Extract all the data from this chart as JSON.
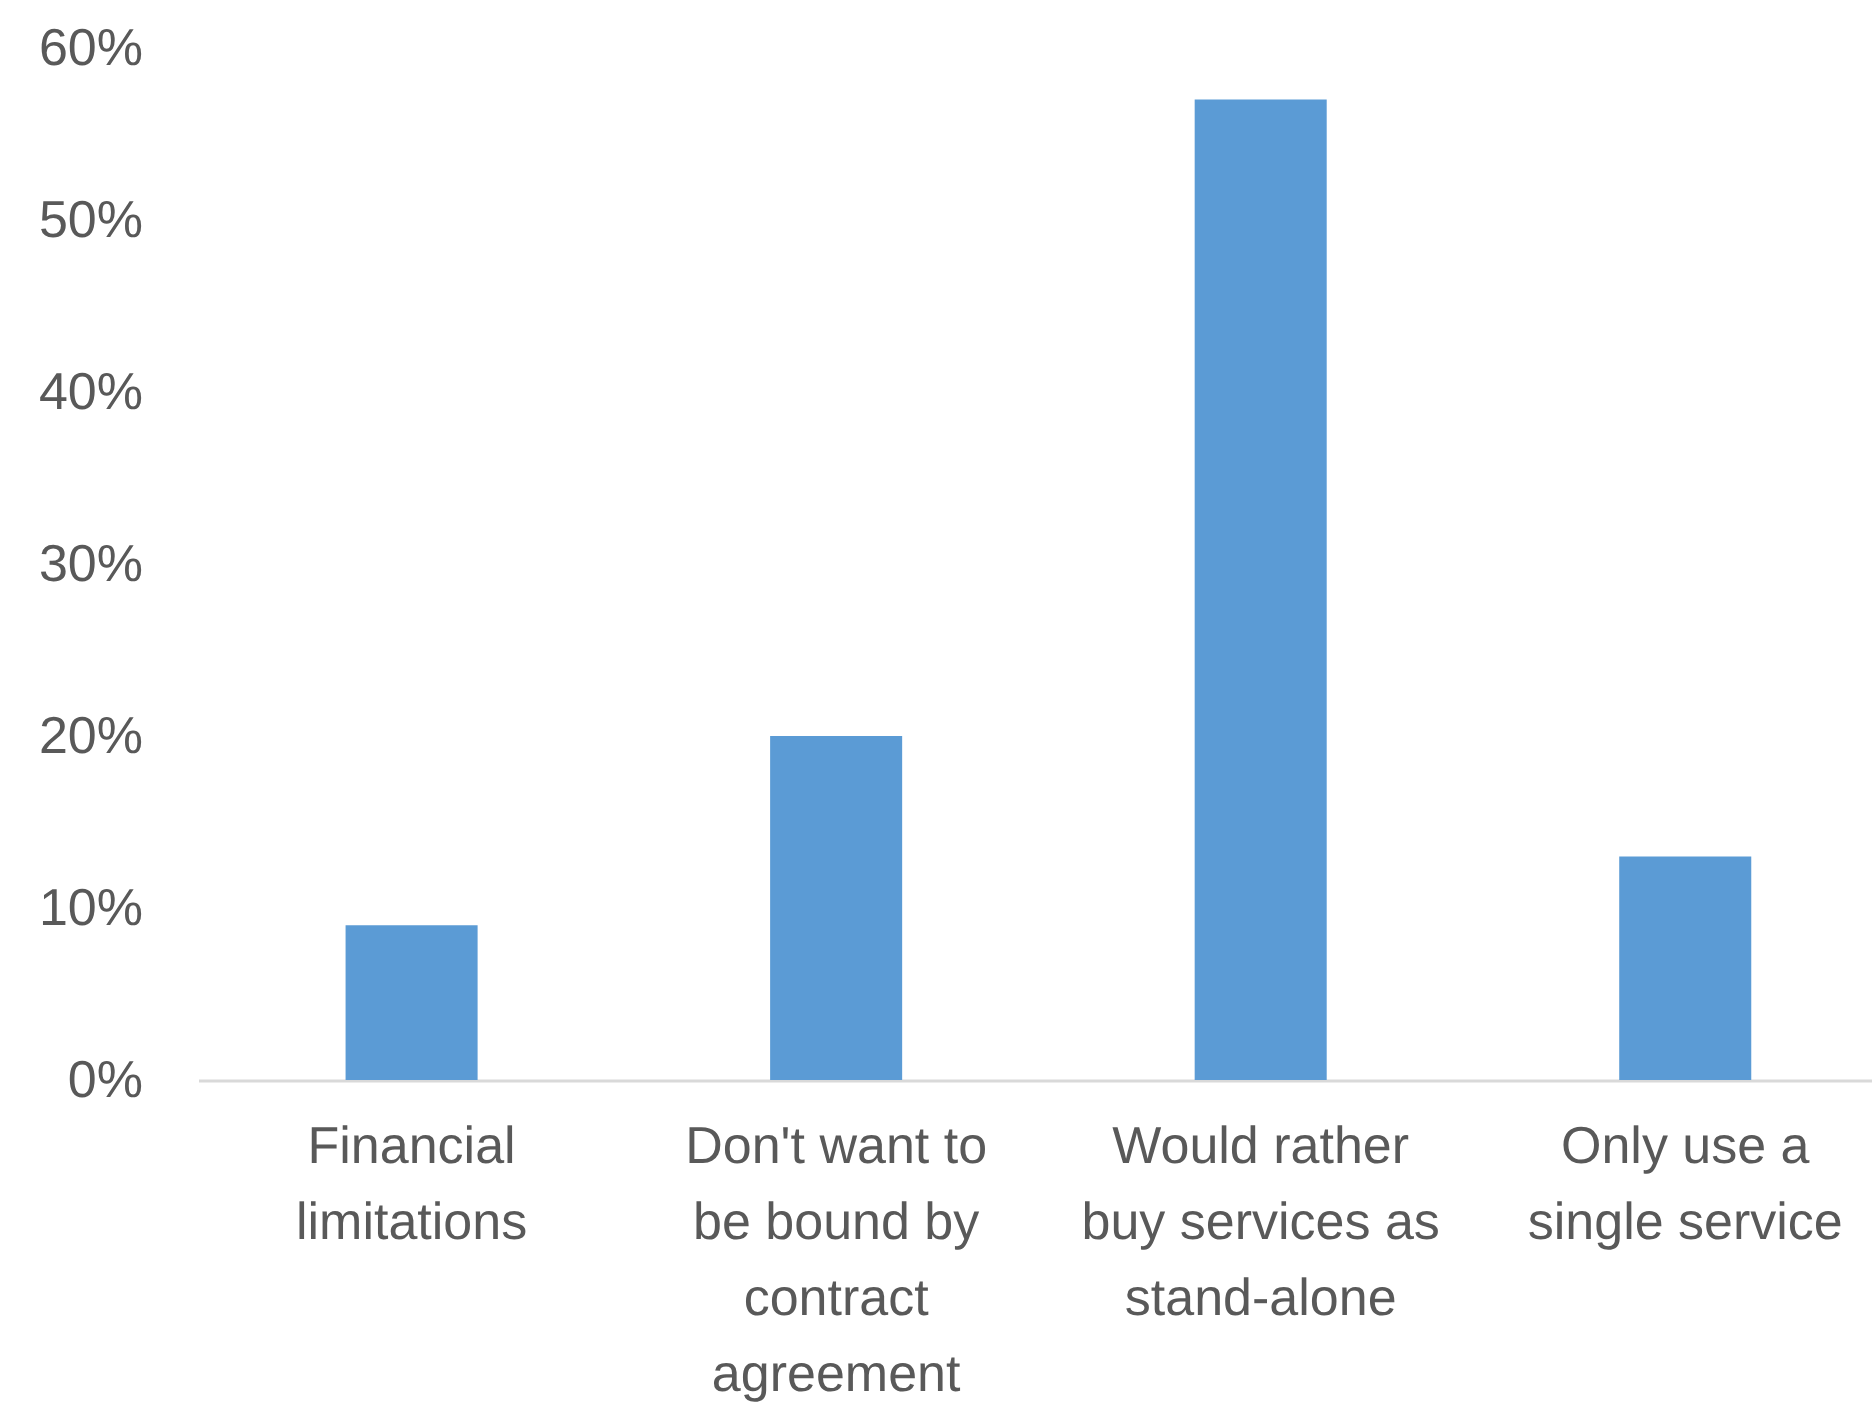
{
  "chart_data": {
    "type": "bar",
    "categories": [
      "Financial limitations",
      "Don't want to be bound by contract agreement",
      "Would rather buy services as stand-alone",
      "Only use a single service"
    ],
    "values": [
      9,
      20,
      57,
      13
    ],
    "color": "#5b9bd5",
    "ylim": [
      0,
      60
    ],
    "yticks": [
      {
        "value": 0,
        "label": "0%"
      },
      {
        "value": 10,
        "label": "10%"
      },
      {
        "value": 20,
        "label": "20%"
      },
      {
        "value": 30,
        "label": "30%"
      },
      {
        "value": 40,
        "label": "40%"
      },
      {
        "value": 50,
        "label": "50%"
      },
      {
        "value": 60,
        "label": "60%"
      }
    ],
    "grid": false
  }
}
